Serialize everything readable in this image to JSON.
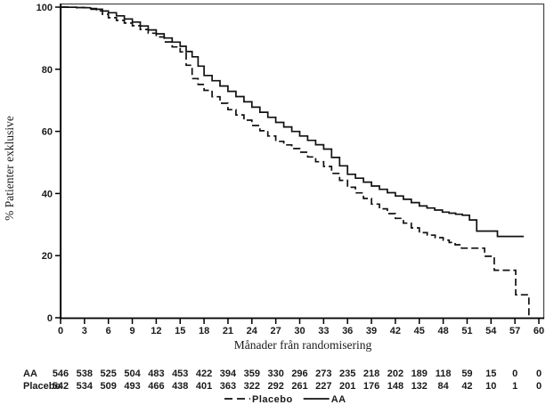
{
  "chart_data": {
    "type": "line",
    "subtype": "kaplan-meier-step",
    "title": "",
    "xlabel": "Månader från randomisering",
    "ylabel": "% Patienter exklusive",
    "xlim": [
      0,
      60
    ],
    "ylim": [
      0,
      100
    ],
    "x_ticks": [
      0,
      3,
      6,
      9,
      12,
      15,
      18,
      21,
      24,
      27,
      30,
      33,
      36,
      39,
      42,
      45,
      48,
      51,
      54,
      57,
      60
    ],
    "y_ticks": [
      0,
      20,
      40,
      60,
      80,
      100
    ],
    "grid": false,
    "legend": {
      "position": "bottom-center",
      "entries": [
        {
          "label": "Placebo",
          "style": "dashed"
        },
        {
          "label": "AA",
          "style": "solid"
        }
      ]
    },
    "series": [
      {
        "name": "AA",
        "style": "solid",
        "points": [
          [
            0,
            100
          ],
          [
            3,
            99.8
          ],
          [
            4.5,
            99.3
          ],
          [
            6,
            98.2
          ],
          [
            9,
            95.2
          ],
          [
            12,
            91.4
          ],
          [
            15,
            87.4
          ],
          [
            16.5,
            84
          ],
          [
            18,
            78
          ],
          [
            21,
            72.9
          ],
          [
            24,
            67.8
          ],
          [
            27,
            62.9
          ],
          [
            30,
            58.5
          ],
          [
            33,
            54.3
          ],
          [
            36,
            46.2
          ],
          [
            39,
            42.4
          ],
          [
            42,
            39.2
          ],
          [
            45,
            36
          ],
          [
            47.9,
            34
          ],
          [
            50.4,
            33
          ],
          [
            51.3,
            31.5
          ],
          [
            52.2,
            27.9
          ],
          [
            54.7,
            27.9
          ],
          [
            54.8,
            26.2
          ],
          [
            58.1,
            26.2
          ]
        ]
      },
      {
        "name": "Placebo",
        "style": "dashed",
        "points": [
          [
            0,
            100
          ],
          [
            3,
            99.8
          ],
          [
            4.5,
            98.8
          ],
          [
            6,
            96.6
          ],
          [
            9,
            94
          ],
          [
            12,
            90.4
          ],
          [
            15,
            85.6
          ],
          [
            16.5,
            77
          ],
          [
            18,
            73.2
          ],
          [
            21,
            67
          ],
          [
            24,
            61.9
          ],
          [
            27,
            56.8
          ],
          [
            30,
            53.3
          ],
          [
            33,
            48.7
          ],
          [
            36,
            42
          ],
          [
            39,
            36.6
          ],
          [
            42,
            32
          ],
          [
            45,
            27.4
          ],
          [
            48,
            25
          ],
          [
            49.5,
            23.5
          ],
          [
            50.3,
            22.4
          ],
          [
            53.1,
            22.4
          ],
          [
            53.2,
            19.8
          ],
          [
            54.3,
            19.8
          ],
          [
            54.4,
            15.3
          ],
          [
            57.0,
            15.3
          ],
          [
            57.1,
            7.4
          ],
          [
            58.7,
            7.4
          ],
          [
            58.75,
            0
          ]
        ]
      }
    ],
    "at_risk_table": {
      "rows": [
        {
          "label": "AA",
          "values": [
            546,
            538,
            525,
            504,
            483,
            453,
            422,
            394,
            359,
            330,
            296,
            273,
            235,
            218,
            202,
            189,
            118,
            59,
            15,
            0,
            0
          ]
        },
        {
          "label": "Placebo",
          "values": [
            542,
            534,
            509,
            493,
            466,
            438,
            401,
            363,
            322,
            292,
            261,
            227,
            201,
            176,
            148,
            132,
            84,
            42,
            10,
            1,
            0
          ]
        }
      ]
    },
    "colors": {
      "line": "#111111",
      "axis": "#000000",
      "frame": "#4d4d4d",
      "text": "#1a1a1a",
      "background": "#ffffff"
    }
  }
}
